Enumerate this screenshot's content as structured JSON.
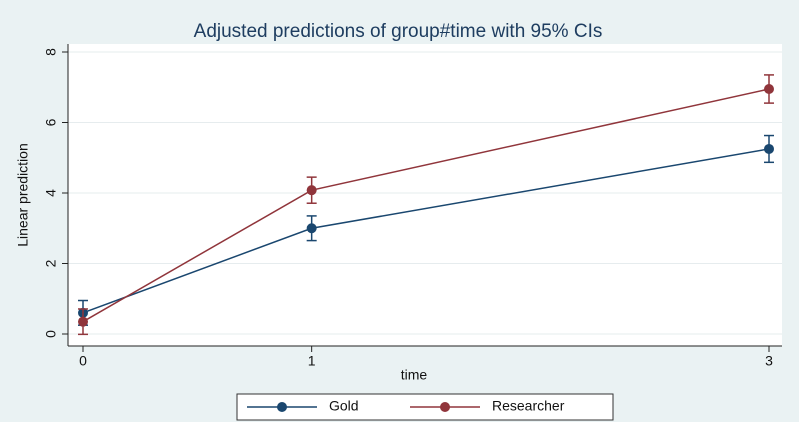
{
  "chart_data": {
    "type": "line",
    "title": "Adjusted predictions of group#time with 95% CIs",
    "x_label": "time",
    "y_label": "Linear prediction",
    "x": [
      0,
      1,
      3
    ],
    "series": [
      {
        "name": "Gold",
        "color": "#1a476f",
        "values": [
          0.6,
          3.0,
          5.25
        ],
        "errors": [
          0.35,
          0.35,
          0.38
        ]
      },
      {
        "name": "Researcher",
        "color": "#90353b",
        "values": [
          0.35,
          4.08,
          6.95
        ],
        "errors": [
          0.36,
          0.37,
          0.4
        ]
      }
    ],
    "xlim": [
      0,
      3
    ],
    "xticks": [
      0,
      1,
      3
    ],
    "ylim": [
      0,
      8
    ],
    "yticks": [
      0,
      2,
      4,
      6,
      8
    ],
    "grid": true,
    "legend": "bottom"
  }
}
